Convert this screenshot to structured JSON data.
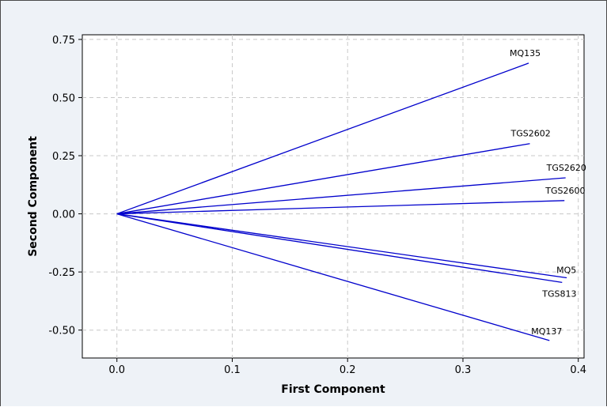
{
  "chart_data": {
    "type": "line",
    "subtype": "loading-plot",
    "xlabel": "First Component",
    "ylabel": "Second Component",
    "xlim": [
      -0.03,
      0.405
    ],
    "ylim": [
      -0.62,
      0.77
    ],
    "xticks": [
      0.0,
      0.1,
      0.2,
      0.3,
      0.4
    ],
    "xtick_labels": [
      "0.0",
      "0.1",
      "0.2",
      "0.3",
      "0.4"
    ],
    "yticks": [
      -0.5,
      -0.25,
      0.0,
      0.25,
      0.5,
      0.75
    ],
    "ytick_labels": [
      "-0.50",
      "-0.25",
      "0.00",
      "0.25",
      "0.50",
      "0.75"
    ],
    "grid": true,
    "line_color": "#0000cc",
    "vectors": [
      {
        "name": "MQ135",
        "x": 0.357,
        "y": 0.648
      },
      {
        "name": "TGS2602",
        "x": 0.358,
        "y": 0.302
      },
      {
        "name": "TGS2620",
        "x": 0.389,
        "y": 0.155
      },
      {
        "name": "TGS2600",
        "x": 0.388,
        "y": 0.057
      },
      {
        "name": "MQ5",
        "x": 0.39,
        "y": -0.275
      },
      {
        "name": "TGS813",
        "x": 0.386,
        "y": -0.295
      },
      {
        "name": "MQ137",
        "x": 0.375,
        "y": -0.545
      }
    ]
  }
}
